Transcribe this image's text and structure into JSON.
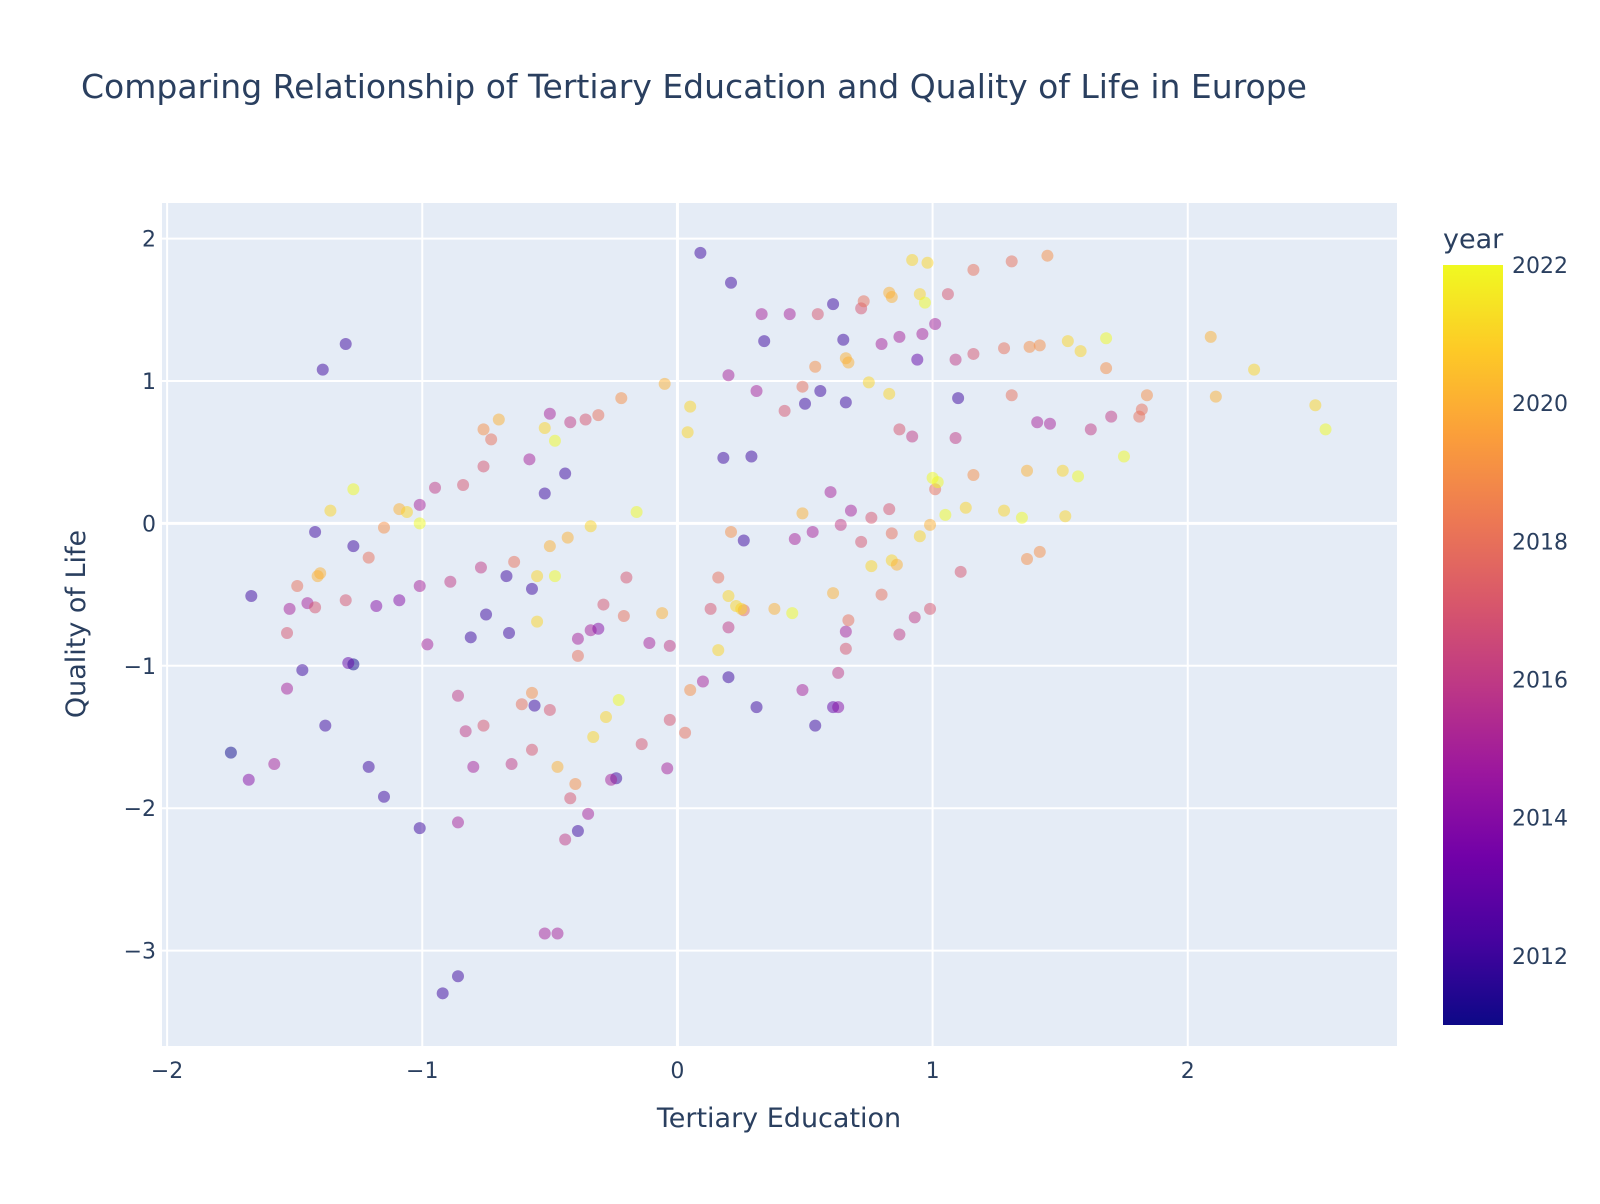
{
  "chart_data": {
    "type": "scatter",
    "title": "Comparing Relationship of Tertiary Education and Quality of Life in Europe",
    "xlabel": "Tertiary Education",
    "ylabel": "Quality of Life",
    "xlim": [
      -2.02,
      2.82
    ],
    "ylim": [
      -3.67,
      2.25
    ],
    "xticks": [
      -2,
      -1,
      0,
      1,
      2
    ],
    "yticks": [
      -3,
      -2,
      -1,
      0,
      1,
      2
    ],
    "xtick_labels": [
      "−2",
      "−1",
      "0",
      "1",
      "2"
    ],
    "ytick_labels": [
      "−3",
      "−2",
      "−1",
      "0",
      "1",
      "2"
    ],
    "grid": true,
    "colorbar": {
      "title": "year",
      "min": 2011,
      "max": 2022,
      "ticks": [
        2012,
        2014,
        2016,
        2018,
        2020,
        2022
      ],
      "colorscale": [
        "#0d0887",
        "#46039f",
        "#7201a8",
        "#9c179e",
        "#bd3786",
        "#d8576b",
        "#ed7953",
        "#fb9f3a",
        "#fdca26",
        "#f0f921"
      ]
    },
    "colors": {
      "plot_bg": "#e5ecf6",
      "grid": "#ffffff",
      "text": "#2a3f5f"
    },
    "points": [
      {
        "x": -1.75,
        "y": -1.61,
        "year": 2011
      },
      {
        "x": -1.67,
        "y": -0.51,
        "year": 2012
      },
      {
        "x": -1.47,
        "y": -1.03,
        "year": 2012
      },
      {
        "x": -1.42,
        "y": -0.06,
        "year": 2012
      },
      {
        "x": -1.39,
        "y": 1.08,
        "year": 2012
      },
      {
        "x": -1.3,
        "y": 1.26,
        "year": 2012
      },
      {
        "x": -1.27,
        "y": -0.99,
        "year": 2011
      },
      {
        "x": -1.38,
        "y": -1.42,
        "year": 2012
      },
      {
        "x": -1.27,
        "y": -0.16,
        "year": 2012
      },
      {
        "x": -1.21,
        "y": -1.71,
        "year": 2012
      },
      {
        "x": -1.15,
        "y": -1.92,
        "year": 2012
      },
      {
        "x": -1.01,
        "y": -2.14,
        "year": 2012
      },
      {
        "x": -0.92,
        "y": -3.3,
        "year": 2012
      },
      {
        "x": -0.86,
        "y": -3.18,
        "year": 2012
      },
      {
        "x": -0.81,
        "y": -0.8,
        "year": 2012
      },
      {
        "x": -0.75,
        "y": -0.64,
        "year": 2012
      },
      {
        "x": -0.67,
        "y": -0.37,
        "year": 2012
      },
      {
        "x": -0.66,
        "y": -0.77,
        "year": 2012
      },
      {
        "x": -0.57,
        "y": -0.46,
        "year": 2012
      },
      {
        "x": -0.52,
        "y": 0.21,
        "year": 2012
      },
      {
        "x": -0.44,
        "y": 0.35,
        "year": 2012
      },
      {
        "x": -0.56,
        "y": -1.28,
        "year": 2012
      },
      {
        "x": -0.39,
        "y": -2.16,
        "year": 2012
      },
      {
        "x": -0.24,
        "y": -1.79,
        "year": 2012
      },
      {
        "x": 0.09,
        "y": 1.9,
        "year": 2012
      },
      {
        "x": 0.21,
        "y": 1.69,
        "year": 2012
      },
      {
        "x": 0.18,
        "y": 0.46,
        "year": 2012
      },
      {
        "x": 0.29,
        "y": 0.47,
        "year": 2012
      },
      {
        "x": 0.26,
        "y": -0.12,
        "year": 2012
      },
      {
        "x": 0.34,
        "y": 1.28,
        "year": 2012
      },
      {
        "x": 0.2,
        "y": -1.08,
        "year": 2012
      },
      {
        "x": 0.31,
        "y": -1.29,
        "year": 2012
      },
      {
        "x": 0.5,
        "y": 0.84,
        "year": 2012
      },
      {
        "x": 0.56,
        "y": 0.93,
        "year": 2012
      },
      {
        "x": 0.61,
        "y": 1.54,
        "year": 2012
      },
      {
        "x": 0.65,
        "y": 1.29,
        "year": 2012
      },
      {
        "x": 0.66,
        "y": 0.85,
        "year": 2012
      },
      {
        "x": 0.54,
        "y": -1.42,
        "year": 2012
      },
      {
        "x": 0.61,
        "y": -1.29,
        "year": 2013
      },
      {
        "x": 0.94,
        "y": 1.15,
        "year": 2013
      },
      {
        "x": 1.1,
        "y": 0.88,
        "year": 2012
      },
      {
        "x": -1.29,
        "y": -0.98,
        "year": 2013
      },
      {
        "x": -1.52,
        "y": -0.6,
        "year": 2015
      },
      {
        "x": -1.45,
        "y": -0.56,
        "year": 2015
      },
      {
        "x": -1.09,
        "y": -0.54,
        "year": 2014
      },
      {
        "x": -1.18,
        "y": -0.58,
        "year": 2014
      },
      {
        "x": -1.01,
        "y": 0.13,
        "year": 2015
      },
      {
        "x": -0.95,
        "y": 0.25,
        "year": 2016
      },
      {
        "x": -0.98,
        "y": -0.85,
        "year": 2015
      },
      {
        "x": -1.01,
        "y": -0.44,
        "year": 2015
      },
      {
        "x": -0.89,
        "y": -0.41,
        "year": 2016
      },
      {
        "x": -0.86,
        "y": -1.21,
        "year": 2016
      },
      {
        "x": -0.83,
        "y": -1.46,
        "year": 2016
      },
      {
        "x": -0.8,
        "y": -1.71,
        "year": 2015
      },
      {
        "x": -0.86,
        "y": -2.1,
        "year": 2015
      },
      {
        "x": -0.77,
        "y": -0.31,
        "year": 2016
      },
      {
        "x": -0.58,
        "y": 0.45,
        "year": 2015
      },
      {
        "x": -0.5,
        "y": 0.77,
        "year": 2015
      },
      {
        "x": -0.42,
        "y": 0.71,
        "year": 2016
      },
      {
        "x": -0.39,
        "y": -0.81,
        "year": 2015
      },
      {
        "x": -0.34,
        "y": -0.75,
        "year": 2015
      },
      {
        "x": -0.31,
        "y": -0.74,
        "year": 2014
      },
      {
        "x": -0.35,
        "y": -2.04,
        "year": 2015
      },
      {
        "x": -0.26,
        "y": -1.8,
        "year": 2015
      },
      {
        "x": -0.52,
        "y": -2.88,
        "year": 2015
      },
      {
        "x": -0.47,
        "y": -2.88,
        "year": 2015
      },
      {
        "x": -0.44,
        "y": -2.22,
        "year": 2016
      },
      {
        "x": -0.65,
        "y": -1.69,
        "year": 2016
      },
      {
        "x": -1.58,
        "y": -1.69,
        "year": 2015
      },
      {
        "x": -1.68,
        "y": -1.8,
        "year": 2014
      },
      {
        "x": -1.53,
        "y": -1.16,
        "year": 2015
      },
      {
        "x": -0.11,
        "y": -0.84,
        "year": 2015
      },
      {
        "x": -0.04,
        "y": -1.72,
        "year": 2015
      },
      {
        "x": -0.03,
        "y": -0.86,
        "year": 2016
      },
      {
        "x": 0.1,
        "y": -1.11,
        "year": 2015
      },
      {
        "x": 0.2,
        "y": 1.04,
        "year": 2015
      },
      {
        "x": 0.2,
        "y": -0.73,
        "year": 2016
      },
      {
        "x": 0.31,
        "y": 0.93,
        "year": 2015
      },
      {
        "x": 0.33,
        "y": 1.47,
        "year": 2015
      },
      {
        "x": 0.44,
        "y": 1.47,
        "year": 2015
      },
      {
        "x": 0.46,
        "y": -0.11,
        "year": 2015
      },
      {
        "x": 0.49,
        "y": -1.17,
        "year": 2015
      },
      {
        "x": 0.53,
        "y": -0.06,
        "year": 2015
      },
      {
        "x": 0.6,
        "y": 0.22,
        "year": 2015
      },
      {
        "x": 0.63,
        "y": -1.29,
        "year": 2014
      },
      {
        "x": 0.64,
        "y": -0.01,
        "year": 2016
      },
      {
        "x": 0.66,
        "y": -0.76,
        "year": 2015
      },
      {
        "x": 0.68,
        "y": 0.09,
        "year": 2015
      },
      {
        "x": 0.63,
        "y": -1.05,
        "year": 2016
      },
      {
        "x": 0.8,
        "y": 1.26,
        "year": 2015
      },
      {
        "x": 0.87,
        "y": 1.31,
        "year": 2015
      },
      {
        "x": 0.92,
        "y": 0.61,
        "year": 2016
      },
      {
        "x": 0.93,
        "y": -0.66,
        "year": 2016
      },
      {
        "x": 0.87,
        "y": -0.78,
        "year": 2016
      },
      {
        "x": 0.96,
        "y": 1.33,
        "year": 2015
      },
      {
        "x": 1.01,
        "y": 1.4,
        "year": 2015
      },
      {
        "x": 1.09,
        "y": 1.15,
        "year": 2016
      },
      {
        "x": 1.09,
        "y": 0.6,
        "year": 2016
      },
      {
        "x": 1.41,
        "y": 0.71,
        "year": 2015
      },
      {
        "x": 1.46,
        "y": 0.7,
        "year": 2015
      },
      {
        "x": 1.62,
        "y": 0.66,
        "year": 2016
      },
      {
        "x": 1.7,
        "y": 0.75,
        "year": 2016
      },
      {
        "x": 1.06,
        "y": 1.61,
        "year": 2017
      },
      {
        "x": 1.16,
        "y": 1.19,
        "year": 2017
      },
      {
        "x": -1.53,
        "y": -0.77,
        "year": 2017
      },
      {
        "x": -1.42,
        "y": -0.59,
        "year": 2017
      },
      {
        "x": -1.49,
        "y": -0.44,
        "year": 2018
      },
      {
        "x": -1.3,
        "y": -0.54,
        "year": 2017
      },
      {
        "x": -1.21,
        "y": -0.24,
        "year": 2018
      },
      {
        "x": -1.15,
        "y": -0.03,
        "year": 2019
      },
      {
        "x": -0.84,
        "y": 0.27,
        "year": 2017
      },
      {
        "x": -0.76,
        "y": 0.4,
        "year": 2017
      },
      {
        "x": -0.73,
        "y": 0.59,
        "year": 2018
      },
      {
        "x": -0.76,
        "y": 0.66,
        "year": 2019
      },
      {
        "x": -0.76,
        "y": -1.42,
        "year": 2017
      },
      {
        "x": -0.64,
        "y": -0.27,
        "year": 2018
      },
      {
        "x": -0.61,
        "y": -1.27,
        "year": 2018
      },
      {
        "x": -0.57,
        "y": -1.59,
        "year": 2017
      },
      {
        "x": -0.5,
        "y": -1.31,
        "year": 2017
      },
      {
        "x": -0.57,
        "y": -1.19,
        "year": 2019
      },
      {
        "x": -0.42,
        "y": -1.93,
        "year": 2017
      },
      {
        "x": -0.39,
        "y": -0.93,
        "year": 2018
      },
      {
        "x": -0.36,
        "y": 0.73,
        "year": 2017
      },
      {
        "x": -0.31,
        "y": 0.76,
        "year": 2018
      },
      {
        "x": -0.29,
        "y": -0.57,
        "year": 2017
      },
      {
        "x": -0.2,
        "y": -0.38,
        "year": 2017
      },
      {
        "x": -0.21,
        "y": -0.65,
        "year": 2018
      },
      {
        "x": -0.22,
        "y": 0.88,
        "year": 2019
      },
      {
        "x": -0.14,
        "y": -1.55,
        "year": 2017
      },
      {
        "x": -0.03,
        "y": -1.38,
        "year": 2017
      },
      {
        "x": 0.03,
        "y": -1.47,
        "year": 2018
      },
      {
        "x": 0.05,
        "y": -1.17,
        "year": 2019
      },
      {
        "x": 0.13,
        "y": -0.6,
        "year": 2017
      },
      {
        "x": 0.16,
        "y": -0.38,
        "year": 2018
      },
      {
        "x": 0.21,
        "y": -0.06,
        "year": 2019
      },
      {
        "x": 0.26,
        "y": -0.61,
        "year": 2018
      },
      {
        "x": 0.42,
        "y": 0.79,
        "year": 2017
      },
      {
        "x": 0.49,
        "y": 0.96,
        "year": 2018
      },
      {
        "x": 0.54,
        "y": 1.1,
        "year": 2019
      },
      {
        "x": 0.55,
        "y": 1.47,
        "year": 2017
      },
      {
        "x": 0.66,
        "y": -0.88,
        "year": 2017
      },
      {
        "x": 0.67,
        "y": -0.68,
        "year": 2018
      },
      {
        "x": 0.72,
        "y": 1.51,
        "year": 2017
      },
      {
        "x": 0.73,
        "y": 1.56,
        "year": 2018
      },
      {
        "x": 0.72,
        "y": -0.13,
        "year": 2017
      },
      {
        "x": 0.76,
        "y": 0.04,
        "year": 2017
      },
      {
        "x": 0.8,
        "y": -0.5,
        "year": 2018
      },
      {
        "x": 0.83,
        "y": 0.1,
        "year": 2017
      },
      {
        "x": 0.84,
        "y": -0.07,
        "year": 2018
      },
      {
        "x": 0.87,
        "y": 0.66,
        "year": 2017
      },
      {
        "x": 0.99,
        "y": -0.6,
        "year": 2017
      },
      {
        "x": 1.01,
        "y": 0.24,
        "year": 2018
      },
      {
        "x": 1.11,
        "y": -0.34,
        "year": 2017
      },
      {
        "x": 1.16,
        "y": 0.34,
        "year": 2019
      },
      {
        "x": 1.16,
        "y": 1.78,
        "year": 2018
      },
      {
        "x": 1.28,
        "y": 1.23,
        "year": 2018
      },
      {
        "x": 1.31,
        "y": 0.9,
        "year": 2018
      },
      {
        "x": 1.31,
        "y": 1.84,
        "year": 2018
      },
      {
        "x": 1.38,
        "y": 1.24,
        "year": 2019
      },
      {
        "x": 1.42,
        "y": 1.25,
        "year": 2019
      },
      {
        "x": 1.45,
        "y": 1.88,
        "year": 2019
      },
      {
        "x": 1.37,
        "y": -0.25,
        "year": 2019
      },
      {
        "x": 1.42,
        "y": -0.2,
        "year": 2019
      },
      {
        "x": 1.68,
        "y": 1.09,
        "year": 2019
      },
      {
        "x": 1.81,
        "y": 0.75,
        "year": 2018
      },
      {
        "x": 1.82,
        "y": 0.8,
        "year": 2018
      },
      {
        "x": 1.84,
        "y": 0.9,
        "year": 2019
      },
      {
        "x": 2.09,
        "y": 1.31,
        "year": 2020
      },
      {
        "x": 2.11,
        "y": 0.89,
        "year": 2020
      },
      {
        "x": 2.26,
        "y": 1.08,
        "year": 2021
      },
      {
        "x": 2.5,
        "y": 0.83,
        "year": 2021
      },
      {
        "x": 2.54,
        "y": 0.66,
        "year": 2022
      },
      {
        "x": -1.41,
        "y": -0.37,
        "year": 2020
      },
      {
        "x": -1.4,
        "y": -0.35,
        "year": 2020
      },
      {
        "x": -1.36,
        "y": 0.09,
        "year": 2021
      },
      {
        "x": -1.27,
        "y": 0.24,
        "year": 2022
      },
      {
        "x": -1.09,
        "y": 0.1,
        "year": 2020
      },
      {
        "x": -1.06,
        "y": 0.08,
        "year": 2021
      },
      {
        "x": -1.01,
        "y": 0.0,
        "year": 2022
      },
      {
        "x": -0.7,
        "y": 0.73,
        "year": 2020
      },
      {
        "x": -0.55,
        "y": -0.37,
        "year": 2021
      },
      {
        "x": -0.55,
        "y": -0.69,
        "year": 2021
      },
      {
        "x": -0.52,
        "y": 0.67,
        "year": 2021
      },
      {
        "x": -0.5,
        "y": -0.16,
        "year": 2020
      },
      {
        "x": -0.48,
        "y": 0.58,
        "year": 2022
      },
      {
        "x": -0.48,
        "y": -0.37,
        "year": 2022
      },
      {
        "x": -0.47,
        "y": -1.71,
        "year": 2020
      },
      {
        "x": -0.43,
        "y": -0.1,
        "year": 2020
      },
      {
        "x": -0.4,
        "y": -1.83,
        "year": 2019
      },
      {
        "x": -0.34,
        "y": -0.02,
        "year": 2021
      },
      {
        "x": -0.33,
        "y": -1.5,
        "year": 2021
      },
      {
        "x": -0.28,
        "y": -1.36,
        "year": 2021
      },
      {
        "x": -0.23,
        "y": -1.24,
        "year": 2022
      },
      {
        "x": -0.16,
        "y": 0.08,
        "year": 2022
      },
      {
        "x": -0.05,
        "y": 0.98,
        "year": 2020
      },
      {
        "x": -0.06,
        "y": -0.63,
        "year": 2020
      },
      {
        "x": 0.04,
        "y": 0.64,
        "year": 2021
      },
      {
        "x": 0.05,
        "y": 0.82,
        "year": 2021
      },
      {
        "x": 0.16,
        "y": -0.89,
        "year": 2021
      },
      {
        "x": 0.2,
        "y": -0.51,
        "year": 2021
      },
      {
        "x": 0.23,
        "y": -0.58,
        "year": 2021
      },
      {
        "x": 0.25,
        "y": -0.6,
        "year": 2021
      },
      {
        "x": 0.38,
        "y": -0.6,
        "year": 2020
      },
      {
        "x": 0.45,
        "y": -0.63,
        "year": 2022
      },
      {
        "x": 0.49,
        "y": 0.07,
        "year": 2020
      },
      {
        "x": 0.61,
        "y": -0.49,
        "year": 2020
      },
      {
        "x": 0.66,
        "y": 1.16,
        "year": 2020
      },
      {
        "x": 0.67,
        "y": 1.13,
        "year": 2020
      },
      {
        "x": 0.75,
        "y": 0.99,
        "year": 2021
      },
      {
        "x": 0.76,
        "y": -0.3,
        "year": 2021
      },
      {
        "x": 0.83,
        "y": 0.91,
        "year": 2021
      },
      {
        "x": 0.83,
        "y": 1.62,
        "year": 2020
      },
      {
        "x": 0.84,
        "y": 1.59,
        "year": 2020
      },
      {
        "x": 0.84,
        "y": -0.26,
        "year": 2021
      },
      {
        "x": 0.86,
        "y": -0.29,
        "year": 2020
      },
      {
        "x": 0.92,
        "y": 1.85,
        "year": 2021
      },
      {
        "x": 0.95,
        "y": 1.61,
        "year": 2021
      },
      {
        "x": 0.97,
        "y": 1.55,
        "year": 2022
      },
      {
        "x": 0.98,
        "y": 1.83,
        "year": 2021
      },
      {
        "x": 0.95,
        "y": -0.09,
        "year": 2021
      },
      {
        "x": 0.99,
        "y": -0.01,
        "year": 2020
      },
      {
        "x": 1.0,
        "y": 0.32,
        "year": 2022
      },
      {
        "x": 1.02,
        "y": 0.29,
        "year": 2022
      },
      {
        "x": 1.05,
        "y": 0.06,
        "year": 2022
      },
      {
        "x": 1.13,
        "y": 0.11,
        "year": 2021
      },
      {
        "x": 1.28,
        "y": 0.09,
        "year": 2021
      },
      {
        "x": 1.35,
        "y": 0.04,
        "year": 2022
      },
      {
        "x": 1.37,
        "y": 0.37,
        "year": 2020
      },
      {
        "x": 1.51,
        "y": 0.37,
        "year": 2021
      },
      {
        "x": 1.52,
        "y": 0.05,
        "year": 2021
      },
      {
        "x": 1.53,
        "y": 1.28,
        "year": 2021
      },
      {
        "x": 1.57,
        "y": 0.33,
        "year": 2022
      },
      {
        "x": 1.58,
        "y": 1.21,
        "year": 2021
      },
      {
        "x": 1.68,
        "y": 1.3,
        "year": 2022
      },
      {
        "x": 1.75,
        "y": 0.47,
        "year": 2022
      }
    ]
  }
}
